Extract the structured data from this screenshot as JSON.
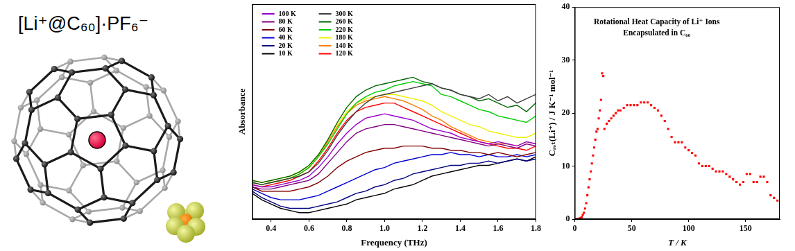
{
  "illustration": {
    "label": "[Li⁺@C₆₀]·PF₆⁻"
  },
  "chart_data": [
    {
      "type": "line",
      "x_label": "Frequency (THz)",
      "y_label": "Absorbance",
      "x": [
        0.3,
        0.35,
        0.4,
        0.45,
        0.5,
        0.55,
        0.6,
        0.65,
        0.7,
        0.75,
        0.8,
        0.85,
        0.9,
        0.95,
        1.0,
        1.05,
        1.1,
        1.15,
        1.2,
        1.25,
        1.3,
        1.35,
        1.4,
        1.45,
        1.5,
        1.55,
        1.6,
        1.65,
        1.7,
        1.75,
        1.8
      ],
      "xlim": [
        0.3,
        1.8
      ],
      "xticks": [
        0.4,
        0.6,
        0.8,
        {
          "value": 1,
          "label": "1.0"
        },
        1.2,
        1.4,
        1.6,
        1.8
      ],
      "ylim": [
        0,
        1
      ],
      "tick_labels": "x",
      "grid": false,
      "legend": "upper left",
      "series": [
        {
          "name": "100 K",
          "color": "#9900cc",
          "values": [
            0.16,
            0.15,
            0.15,
            0.16,
            0.17,
            0.18,
            0.2,
            0.24,
            0.29,
            0.35,
            0.4,
            0.44,
            0.47,
            0.48,
            0.49,
            0.48,
            0.47,
            0.46,
            0.44,
            0.42,
            0.41,
            0.4,
            0.38,
            0.37,
            0.36,
            0.35,
            0.36,
            0.35,
            0.34,
            0.36,
            0.35
          ]
        },
        {
          "name": "80 K",
          "color": "#800080",
          "values": [
            0.15,
            0.14,
            0.14,
            0.15,
            0.16,
            0.17,
            0.18,
            0.21,
            0.26,
            0.31,
            0.36,
            0.4,
            0.42,
            0.43,
            0.44,
            0.44,
            0.43,
            0.42,
            0.41,
            0.4,
            0.39,
            0.38,
            0.37,
            0.36,
            0.35,
            0.34,
            0.35,
            0.34,
            0.33,
            0.35,
            0.34
          ]
        },
        {
          "name": "60 K",
          "color": "#800000",
          "values": [
            0.15,
            0.13,
            0.13,
            0.13,
            0.13,
            0.14,
            0.15,
            0.17,
            0.2,
            0.24,
            0.27,
            0.29,
            0.31,
            0.32,
            0.33,
            0.33,
            0.34,
            0.34,
            0.34,
            0.33,
            0.33,
            0.32,
            0.32,
            0.31,
            0.31,
            0.3,
            0.31,
            0.3,
            0.29,
            0.3,
            0.31
          ]
        },
        {
          "name": "40 K",
          "color": "#0000cc",
          "values": [
            0.14,
            0.12,
            0.1,
            0.09,
            0.09,
            0.09,
            0.1,
            0.11,
            0.13,
            0.15,
            0.17,
            0.19,
            0.21,
            0.23,
            0.24,
            0.26,
            0.27,
            0.28,
            0.29,
            0.3,
            0.3,
            0.31,
            0.3,
            0.3,
            0.29,
            0.3,
            0.29,
            0.29,
            0.3,
            0.29,
            0.3
          ]
        },
        {
          "name": "20 K",
          "color": "#000080",
          "values": [
            0.13,
            0.1,
            0.08,
            0.06,
            0.05,
            0.05,
            0.05,
            0.06,
            0.07,
            0.08,
            0.1,
            0.12,
            0.13,
            0.15,
            0.16,
            0.18,
            0.19,
            0.21,
            0.22,
            0.23,
            0.24,
            0.25,
            0.25,
            0.26,
            0.26,
            0.27,
            0.26,
            0.27,
            0.28,
            0.27,
            0.28
          ]
        },
        {
          "name": "10 K",
          "color": "#000000",
          "values": [
            0.12,
            0.09,
            0.07,
            0.05,
            0.04,
            0.03,
            0.03,
            0.04,
            0.05,
            0.06,
            0.07,
            0.09,
            0.1,
            0.11,
            0.12,
            0.14,
            0.15,
            0.16,
            0.18,
            0.2,
            0.21,
            0.22,
            0.23,
            0.24,
            0.25,
            0.25,
            0.26,
            0.27,
            0.28,
            0.27,
            0.29
          ]
        },
        {
          "name": "300 K",
          "color": "#404040",
          "values": [
            0.17,
            0.16,
            0.17,
            0.18,
            0.19,
            0.2,
            0.22,
            0.26,
            0.32,
            0.39,
            0.45,
            0.5,
            0.54,
            0.57,
            0.58,
            0.59,
            0.6,
            0.61,
            0.62,
            0.63,
            0.61,
            0.6,
            0.58,
            0.57,
            0.56,
            0.58,
            0.55,
            0.57,
            0.54,
            0.56,
            0.58
          ]
        },
        {
          "name": "260 K",
          "color": "#006400",
          "values": [
            0.18,
            0.17,
            0.18,
            0.19,
            0.2,
            0.22,
            0.25,
            0.3,
            0.37,
            0.45,
            0.52,
            0.57,
            0.6,
            0.62,
            0.63,
            0.64,
            0.65,
            0.66,
            0.64,
            0.63,
            0.61,
            0.6,
            0.58,
            0.57,
            0.55,
            0.56,
            0.54,
            0.52,
            0.53,
            0.5,
            0.54
          ]
        },
        {
          "name": "220 K",
          "color": "#00cc00",
          "values": [
            0.17,
            0.16,
            0.17,
            0.18,
            0.19,
            0.21,
            0.24,
            0.29,
            0.35,
            0.42,
            0.49,
            0.54,
            0.57,
            0.59,
            0.6,
            0.62,
            0.63,
            0.64,
            0.63,
            0.62,
            0.58,
            0.57,
            0.55,
            0.53,
            0.51,
            0.5,
            0.48,
            0.47,
            0.46,
            0.45,
            0.48
          ]
        },
        {
          "name": "180 K",
          "color": "#f0f000",
          "values": [
            0.18,
            0.17,
            0.18,
            0.19,
            0.2,
            0.22,
            0.25,
            0.3,
            0.37,
            0.44,
            0.5,
            0.54,
            0.56,
            0.57,
            0.58,
            0.58,
            0.57,
            0.56,
            0.55,
            0.53,
            0.5,
            0.48,
            0.46,
            0.44,
            0.43,
            0.41,
            0.4,
            0.39,
            0.38,
            0.38,
            0.4
          ]
        },
        {
          "name": "140 K",
          "color": "#ff8000",
          "values": [
            0.17,
            0.16,
            0.17,
            0.18,
            0.19,
            0.21,
            0.24,
            0.29,
            0.36,
            0.43,
            0.49,
            0.53,
            0.55,
            0.56,
            0.57,
            0.56,
            0.55,
            0.53,
            0.51,
            0.48,
            0.46,
            0.43,
            0.41,
            0.39,
            0.37,
            0.36,
            0.35,
            0.35,
            0.34,
            0.36,
            0.35
          ]
        },
        {
          "name": "120 K",
          "color": "#ff0000",
          "values": [
            0.16,
            0.15,
            0.16,
            0.17,
            0.18,
            0.2,
            0.22,
            0.27,
            0.33,
            0.4,
            0.46,
            0.5,
            0.52,
            0.53,
            0.54,
            0.54,
            0.52,
            0.5,
            0.48,
            0.46,
            0.44,
            0.42,
            0.4,
            0.38,
            0.36,
            0.35,
            0.34,
            0.33,
            0.33,
            0.32,
            0.34
          ]
        }
      ]
    },
    {
      "type": "scatter",
      "title": [
        "Rotational Heat Capacity of Li⁺ Ions",
        "Encapsulated in C₆₀"
      ],
      "x_label": "T / K",
      "y_label": "Cᵣₒₜ(Li⁺) / J K⁻¹ mol⁻¹",
      "x": [
        1,
        2,
        3,
        4,
        5,
        6,
        7,
        8,
        9,
        10,
        11,
        12,
        13,
        14,
        15,
        16,
        17,
        18,
        19,
        20,
        21,
        22,
        23,
        24,
        25,
        26,
        28,
        30,
        32,
        34,
        36,
        38,
        40,
        43,
        46,
        49,
        52,
        55,
        58,
        61,
        64,
        67,
        70,
        73,
        76,
        79,
        82,
        85,
        88,
        91,
        94,
        97,
        100,
        103,
        106,
        109,
        112,
        115,
        118,
        121,
        124,
        127,
        130,
        133,
        136,
        139,
        142,
        145,
        148,
        151,
        154,
        157,
        160,
        163,
        166,
        169,
        172,
        175,
        178
      ],
      "values": [
        0,
        0,
        0,
        0.1,
        0.2,
        0.4,
        0.8,
        1.2,
        2,
        3,
        4.5,
        6,
        7.5,
        9,
        10.5,
        12,
        13.5,
        15,
        16.5,
        17,
        19,
        20.5,
        22.5,
        27.5,
        27,
        17,
        18,
        18.5,
        19,
        19.5,
        20,
        20.5,
        20.5,
        21,
        21.5,
        21.5,
        21.5,
        21.5,
        22,
        22,
        22,
        21.5,
        21,
        20.5,
        19.5,
        18.5,
        17,
        15.5,
        14.5,
        14.5,
        14.5,
        13.5,
        13,
        12.5,
        12,
        10.5,
        10,
        10,
        10,
        9.5,
        9,
        9,
        9,
        8.5,
        8,
        7.5,
        7,
        6.5,
        7,
        8.5,
        8.5,
        7,
        7,
        8,
        8,
        7,
        4.5,
        4,
        3.5
      ],
      "color": "#ff0000",
      "marker": "square",
      "xlim": [
        0,
        180
      ],
      "xticks": [
        0,
        50,
        100,
        150
      ],
      "ylim": [
        0,
        40
      ],
      "yticks": [
        0,
        10,
        20,
        30,
        40
      ],
      "grid": false
    }
  ]
}
